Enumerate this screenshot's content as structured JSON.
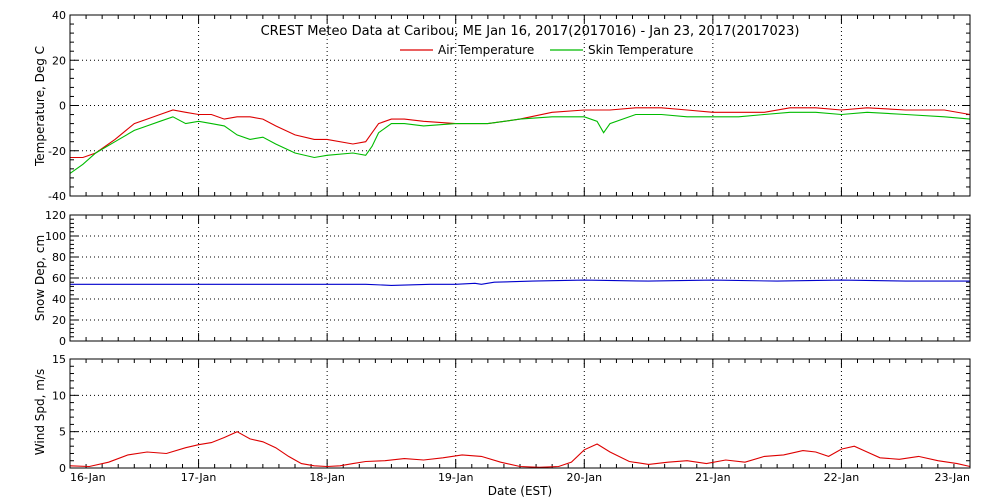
{
  "chart_data": {
    "type": "line",
    "title": "CREST Meteo Data at Caribou, ME   Jan 16, 2017(2017016) - Jan 23, 2017(2017023)",
    "xlabel": "Date (EST)",
    "x_ticks": [
      "16-Jan",
      "17-Jan",
      "18-Jan",
      "19-Jan",
      "20-Jan",
      "21-Jan",
      "22-Jan",
      "23-Jan"
    ],
    "x_range_days": [
      16,
      23
    ],
    "grid": "dotted",
    "legend_placement": "top-center",
    "panels": [
      {
        "id": "temperature",
        "ylabel": "Temperature, Deg C",
        "ylim": [
          -40,
          40
        ],
        "yticks": [
          "-40",
          "-20",
          "0",
          "20",
          "40"
        ],
        "series": [
          {
            "name": "Air Temperature",
            "color": "#dd0000",
            "x_day": [
              16.0,
              16.1,
              16.2,
              16.35,
              16.5,
              16.6,
              16.7,
              16.8,
              16.9,
              17.0,
              17.1,
              17.2,
              17.3,
              17.4,
              17.5,
              17.6,
              17.75,
              17.9,
              18.0,
              18.2,
              18.3,
              18.35,
              18.4,
              18.5,
              18.6,
              18.75,
              19.0,
              19.25,
              19.5,
              19.75,
              20.0,
              20.1,
              20.2,
              20.4,
              20.6,
              20.8,
              21.0,
              21.2,
              21.4,
              21.6,
              21.8,
              22.0,
              22.2,
              22.5,
              22.8,
              23.0
            ],
            "y": [
              -23,
              -23,
              -21,
              -15,
              -8,
              -6,
              -4,
              -2,
              -3,
              -4,
              -4,
              -6,
              -5,
              -5,
              -6,
              -9,
              -13,
              -15,
              -15,
              -17,
              -16,
              -12,
              -8,
              -6,
              -6,
              -7,
              -8,
              -8,
              -6,
              -3,
              -2,
              -2,
              -2,
              -1,
              -1,
              -2,
              -3,
              -3,
              -3,
              -1,
              -1,
              -2,
              -1,
              -2,
              -2,
              -4
            ]
          },
          {
            "name": "Skin Temperature",
            "color": "#00bb00",
            "x_day": [
              16.0,
              16.1,
              16.2,
              16.35,
              16.5,
              16.6,
              16.7,
              16.8,
              16.9,
              17.0,
              17.1,
              17.2,
              17.3,
              17.4,
              17.5,
              17.6,
              17.75,
              17.9,
              18.0,
              18.2,
              18.3,
              18.35,
              18.4,
              18.5,
              18.6,
              18.75,
              19.0,
              19.25,
              19.5,
              19.75,
              20.0,
              20.1,
              20.15,
              20.2,
              20.4,
              20.6,
              20.8,
              21.0,
              21.2,
              21.4,
              21.6,
              21.8,
              22.0,
              22.2,
              22.5,
              22.8,
              23.0
            ],
            "y": [
              -30,
              -26,
              -21,
              -16,
              -11,
              -9,
              -7,
              -5,
              -8,
              -7,
              -8,
              -9,
              -13,
              -15,
              -14,
              -17,
              -21,
              -23,
              -22,
              -21,
              -22,
              -18,
              -12,
              -8,
              -8,
              -9,
              -8,
              -8,
              -6,
              -5,
              -5,
              -7,
              -12,
              -8,
              -4,
              -4,
              -5,
              -5,
              -5,
              -4,
              -3,
              -3,
              -4,
              -3,
              -4,
              -5,
              -6
            ]
          }
        ]
      },
      {
        "id": "snow-depth",
        "ylabel": "Snow Dep, cm",
        "ylim": [
          0,
          120
        ],
        "yticks": [
          "0",
          "20",
          "40",
          "60",
          "80",
          "100",
          "120"
        ],
        "series": [
          {
            "color": "#0000cc",
            "x_day": [
              16.0,
              16.5,
              17.0,
              17.5,
              18.0,
              18.3,
              18.5,
              18.8,
              19.0,
              19.15,
              19.2,
              19.3,
              19.6,
              20.0,
              20.5,
              21.0,
              21.5,
              22.0,
              22.5,
              23.0
            ],
            "y": [
              54,
              54,
              54,
              54,
              54,
              54,
              53,
              54,
              54,
              55,
              54,
              56,
              57,
              58,
              57,
              58,
              57,
              58,
              57,
              57
            ]
          }
        ]
      },
      {
        "id": "wind-speed",
        "ylabel": "Wind Spd, m/s",
        "ylim": [
          0,
          15
        ],
        "yticks": [
          "0",
          "5",
          "10",
          "15"
        ],
        "series": [
          {
            "color": "#dd0000",
            "x_day": [
              16.0,
              16.15,
              16.3,
              16.45,
              16.6,
              16.75,
              16.9,
              17.0,
              17.1,
              17.2,
              17.3,
              17.4,
              17.5,
              17.6,
              17.7,
              17.8,
              17.9,
              18.0,
              18.1,
              18.2,
              18.3,
              18.45,
              18.6,
              18.75,
              18.9,
              19.05,
              19.2,
              19.35,
              19.5,
              19.65,
              19.8,
              19.9,
              20.0,
              20.1,
              20.2,
              20.35,
              20.5,
              20.65,
              20.8,
              20.95,
              21.1,
              21.25,
              21.4,
              21.55,
              21.7,
              21.8,
              21.9,
              22.0,
              22.1,
              22.2,
              22.3,
              22.45,
              22.6,
              22.75,
              22.9,
              23.0
            ],
            "y": [
              0.3,
              0.2,
              0.8,
              1.8,
              2.2,
              2.0,
              2.8,
              3.2,
              3.5,
              4.2,
              5.0,
              4.0,
              3.6,
              2.8,
              1.6,
              0.6,
              0.3,
              0.2,
              0.3,
              0.6,
              0.9,
              1.0,
              1.3,
              1.1,
              1.4,
              1.8,
              1.6,
              0.8,
              0.2,
              0.1,
              0.2,
              0.8,
              2.5,
              3.3,
              2.2,
              0.9,
              0.5,
              0.8,
              1.0,
              0.6,
              1.1,
              0.8,
              1.6,
              1.8,
              2.4,
              2.2,
              1.6,
              2.6,
              3.0,
              2.2,
              1.4,
              1.2,
              1.6,
              1.0,
              0.6,
              0.2
            ]
          }
        ]
      }
    ]
  }
}
